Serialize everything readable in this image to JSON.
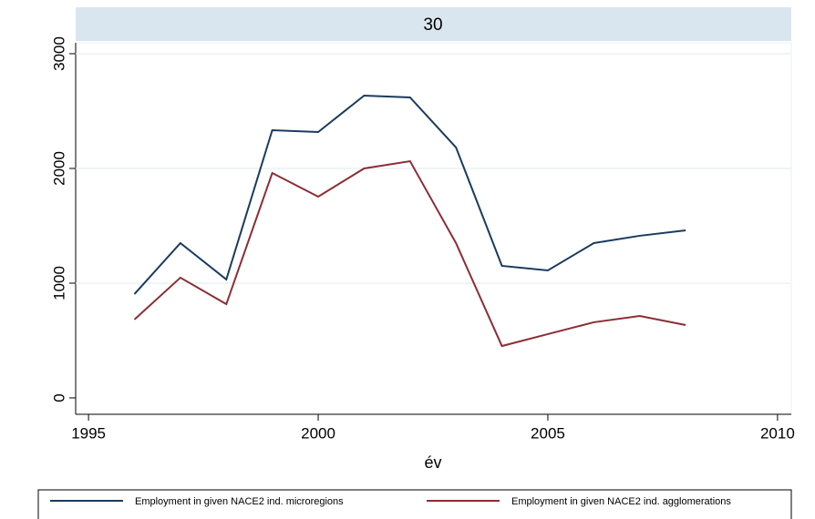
{
  "chart_data": {
    "type": "line",
    "title": "30",
    "xlabel": "év",
    "x": [
      1996,
      1997,
      1998,
      1999,
      2000,
      2001,
      2002,
      2003,
      2004,
      2005,
      2006,
      2007,
      2008
    ],
    "series": [
      {
        "name": "Employment in given NACE2 ind. microregions",
        "color": "#1a3b5e",
        "values": [
          905,
          1349,
          1032,
          2333,
          2317,
          2635,
          2619,
          2183,
          1151,
          1111,
          1349,
          1413,
          1460
        ]
      },
      {
        "name": "Employment in given NACE2 ind. agglomerations",
        "color": "#8b2d35",
        "values": [
          683,
          1048,
          817,
          1960,
          1754,
          2000,
          2063,
          1349,
          452,
          556,
          659,
          714,
          635
        ]
      }
    ],
    "xlim": [
      1994.72,
      2010.3
    ],
    "xticks": [
      1995,
      2000,
      2005,
      2010
    ],
    "ylim": [
      -143,
      3095
    ],
    "yticks": [
      0,
      1000,
      2000,
      3000
    ],
    "grid": true
  }
}
